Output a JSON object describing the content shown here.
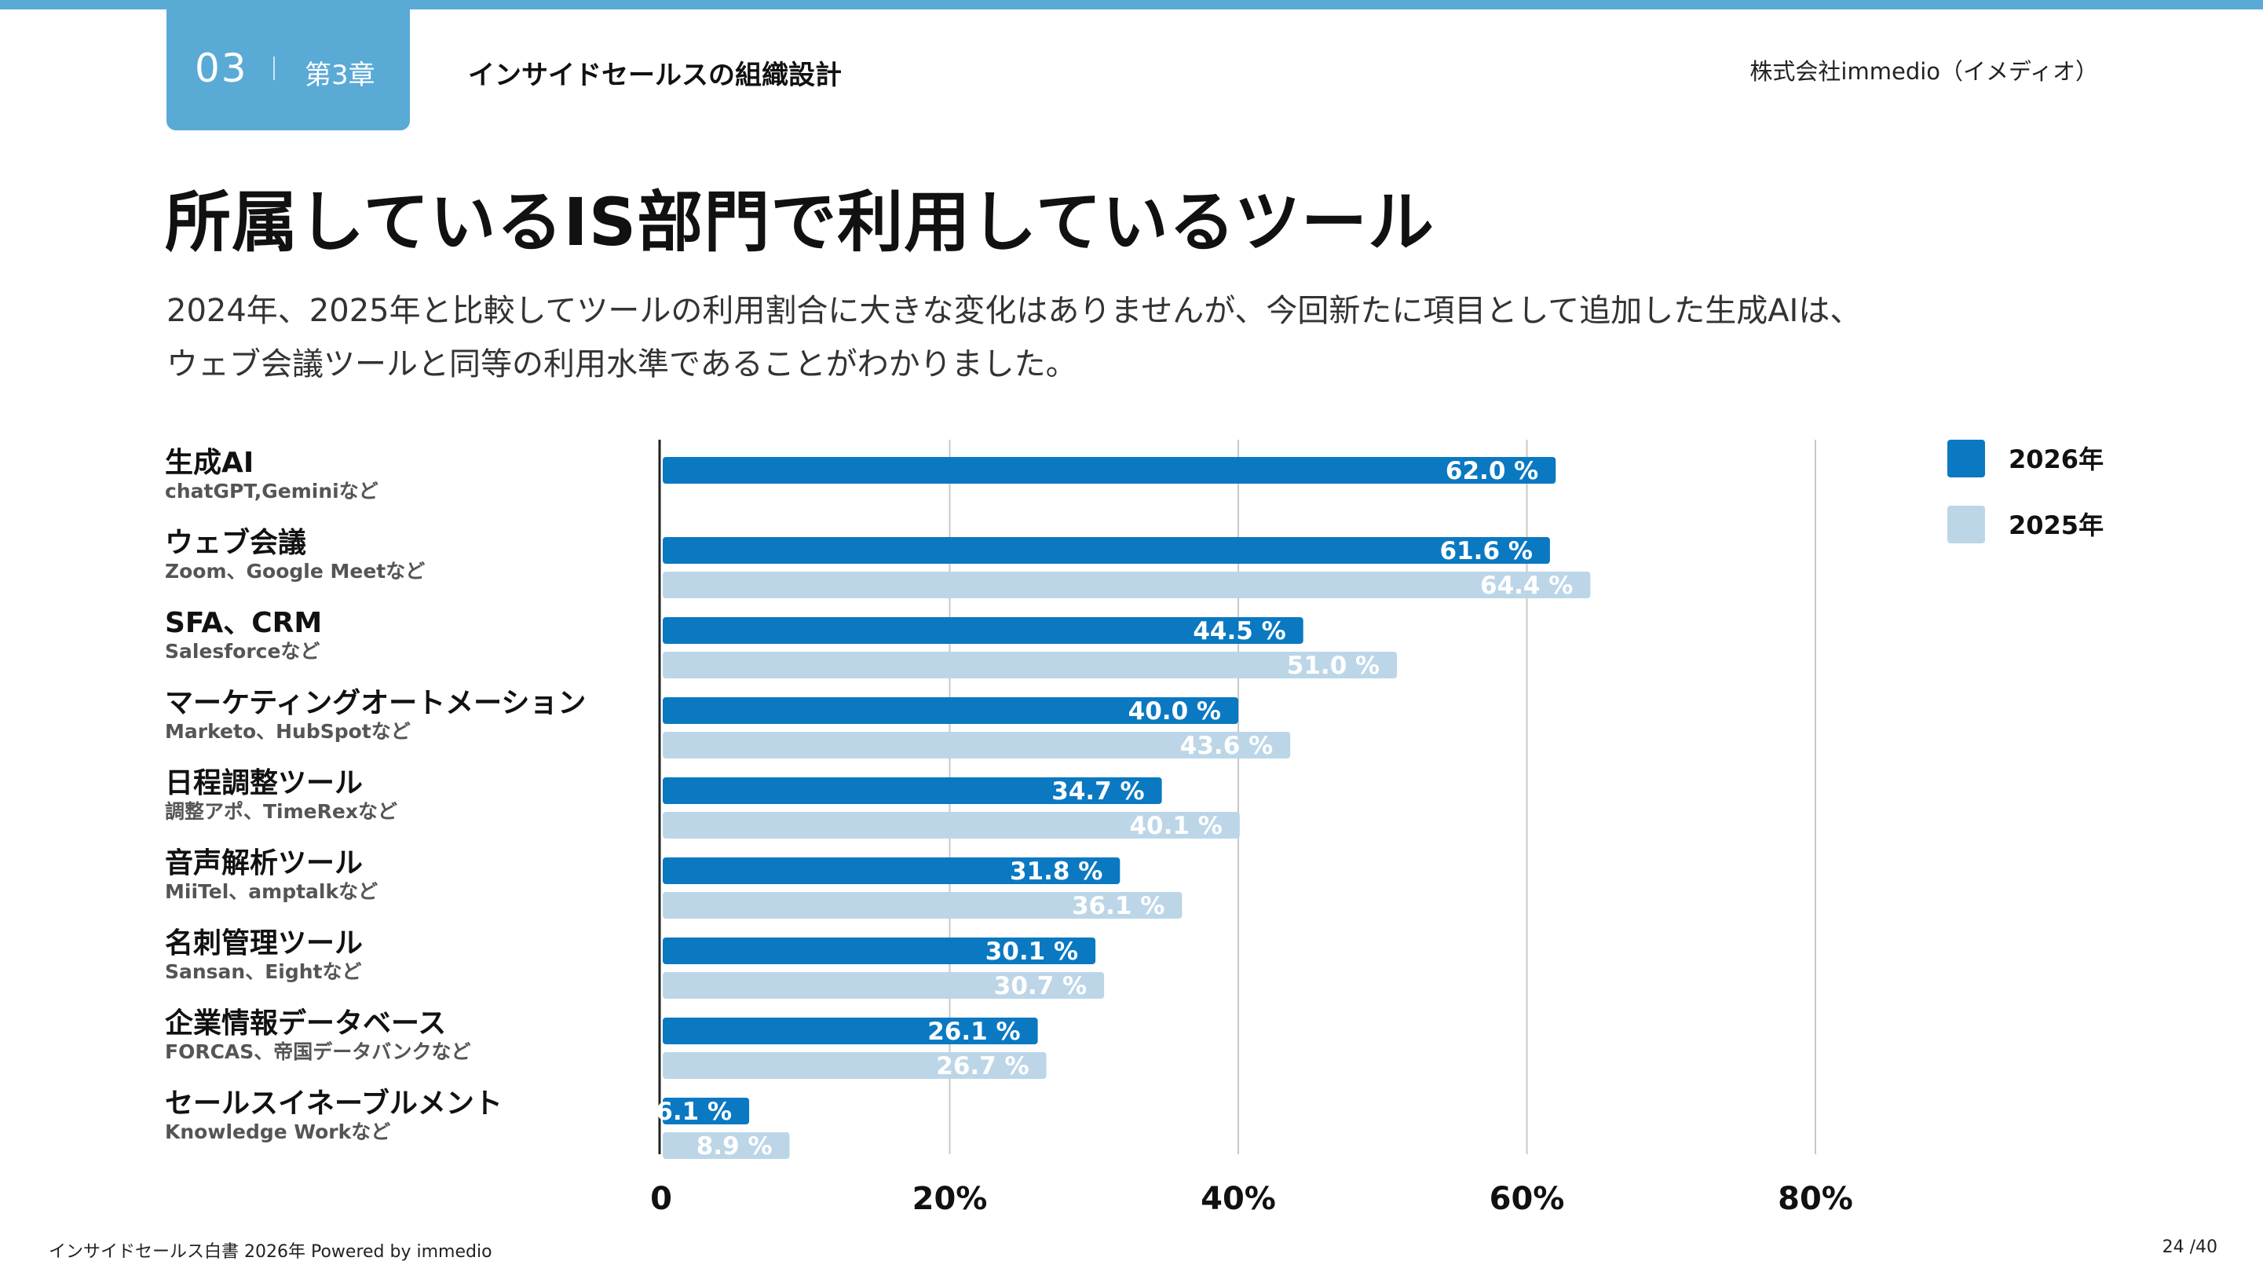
{
  "header": {
    "chapter_number": "03",
    "chapter_label": "第3章",
    "section_title": "インサイドセールスの組織設計",
    "company": "株式会社immedio（イメディオ）"
  },
  "page_title": "所属しているIS部門で利用しているツール",
  "description": {
    "line1": "2024年、2025年と比較してツールの利用割合に大きな変化はありませんが、今回新たに項目として追加した生成AIは、",
    "line2": "ウェブ会議ツールと同等の利用水準であることがわかりました。"
  },
  "colors": {
    "accent": "#5aaad6",
    "series_2026": "#0a79c2",
    "series_2025": "#bcd6e8"
  },
  "chart_data": {
    "type": "bar",
    "orientation": "horizontal",
    "categories": [
      "生成AI",
      "ウェブ会議",
      "SFA、CRM",
      "マーケティングオートメーション",
      "日程調整ツール",
      "音声解析ツール",
      "名刺管理ツール",
      "企業情報データベース",
      "セールスイネーブルメント"
    ],
    "category_subtitles": [
      "chatGPT,Geminiなど",
      "Zoom、Google Meetなど",
      "Salesforceなど",
      "Marketo、HubSpotなど",
      "調整アポ、TimeRexなど",
      "MiiTel、amptalkなど",
      "Sansan、Eightなど",
      "FORCAS、帝国データバンクなど",
      "Knowledge Workなど"
    ],
    "series": [
      {
        "name": "2026年",
        "values": [
          62.0,
          61.6,
          44.5,
          40.0,
          34.7,
          31.8,
          30.1,
          26.1,
          6.1
        ],
        "labels": [
          "62.0 %",
          "61.6 %",
          "44.5 %",
          "40.0 %",
          "34.7 %",
          "31.8 %",
          "30.1 %",
          "26.1 %",
          "6.1 %"
        ]
      },
      {
        "name": "2025年",
        "values": [
          null,
          64.4,
          51.0,
          43.6,
          40.1,
          36.1,
          30.7,
          26.7,
          8.9
        ],
        "labels": [
          "",
          "64.4 %",
          "51.0 %",
          "43.6 %",
          "40.1 %",
          "36.1 %",
          "30.7 %",
          "26.7 %",
          "8.9 %"
        ]
      }
    ],
    "xlim": [
      0,
      80
    ],
    "ticks": [
      0,
      20,
      40,
      60,
      80
    ],
    "tick_labels": [
      "0",
      "20%",
      "40%",
      "60%",
      "80%"
    ],
    "legend": [
      "2026年",
      "2025年"
    ],
    "legend_position": "top-right",
    "grid": true
  },
  "footer": {
    "left": "インサイドセールス白書 2026年 Powered by immedio",
    "page": "24 /40"
  }
}
